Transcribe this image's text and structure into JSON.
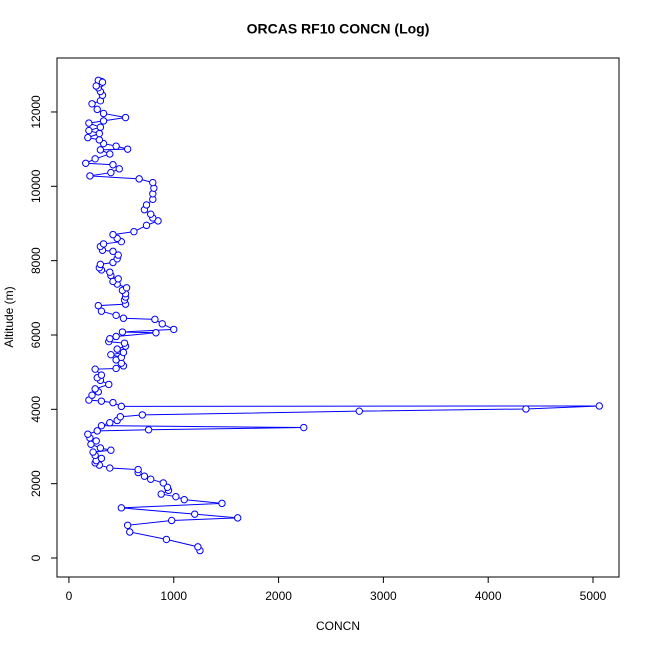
{
  "chart_data": {
    "type": "scatter",
    "title": "ORCAS RF10 CONCN (Log)",
    "x_label": "CONCN",
    "y_label": "Altitude (m)",
    "color": "#0000ff",
    "lines": true,
    "marker": "open-circle",
    "xlim": [
      -114,
      5248
    ],
    "ylim": [
      -511,
      13452
    ],
    "xticks": [
      0,
      1000,
      2000,
      3000,
      4000,
      5000
    ],
    "yticks": [
      0,
      2000,
      4000,
      6000,
      8000,
      10000,
      12000
    ],
    "x": [
      1250,
      1230,
      930,
      580,
      560,
      980,
      1610,
      1200,
      500,
      1460,
      1100,
      1020,
      880,
      950,
      940,
      900,
      780,
      720,
      660,
      660,
      390,
      290,
      250,
      260,
      310,
      250,
      230,
      400,
      300,
      210,
      260,
      200,
      180,
      270,
      760,
      2240,
      310,
      390,
      460,
      490,
      700,
      2770,
      4360,
      5060,
      500,
      420,
      310,
      190,
      220,
      280,
      250,
      380,
      300,
      270,
      310,
      250,
      450,
      520,
      500,
      450,
      500,
      400,
      520,
      460,
      540,
      530,
      380,
      390,
      450,
      830,
      510,
      1000,
      890,
      820,
      520,
      450,
      310,
      280,
      540,
      530,
      540,
      540,
      510,
      550,
      460,
      420,
      470,
      400,
      390,
      310,
      290,
      300,
      420,
      460,
      470,
      420,
      320,
      300,
      330,
      500,
      460,
      420,
      620,
      740,
      850,
      800,
      780,
      720,
      740,
      800,
      800,
      810,
      800,
      670,
      200,
      400,
      480,
      420,
      160,
      250,
      390,
      300,
      560,
      450,
      330,
      290,
      180,
      290,
      190,
      300,
      190,
      330,
      540,
      330,
      270,
      220,
      300,
      320,
      300,
      280,
      300,
      310,
      280,
      320,
      260
    ],
    "values": [
      200,
      300,
      500,
      700,
      880,
      1010,
      1080,
      1180,
      1350,
      1470,
      1570,
      1650,
      1720,
      1820,
      1900,
      2020,
      2120,
      2200,
      2300,
      2380,
      2420,
      2500,
      2560,
      2620,
      2680,
      2760,
      2850,
      2900,
      2960,
      3060,
      3150,
      3230,
      3330,
      3420,
      3450,
      3510,
      3560,
      3640,
      3700,
      3800,
      3850,
      3950,
      4010,
      4090,
      4080,
      4180,
      4220,
      4250,
      4380,
      4470,
      4550,
      4670,
      4780,
      4850,
      4920,
      5080,
      5100,
      5170,
      5240,
      5330,
      5400,
      5470,
      5530,
      5620,
      5700,
      5780,
      5820,
      5900,
      5960,
      6060,
      6080,
      6150,
      6300,
      6420,
      6450,
      6530,
      6640,
      6790,
      6830,
      6940,
      7020,
      7110,
      7200,
      7270,
      7370,
      7440,
      7510,
      7600,
      7690,
      7750,
      7810,
      7900,
      7950,
      8050,
      8150,
      8250,
      8280,
      8380,
      8450,
      8510,
      8600,
      8700,
      8780,
      8950,
      9070,
      9150,
      9250,
      9370,
      9500,
      9650,
      9800,
      9950,
      10100,
      10200,
      10280,
      10370,
      10470,
      10580,
      10620,
      10740,
      10870,
      10980,
      11000,
      11080,
      11150,
      11250,
      11310,
      11420,
      11500,
      11590,
      11700,
      11760,
      11850,
      11960,
      12070,
      12220,
      12300,
      12450,
      12550,
      12650,
      12760,
      12820,
      12850,
      12800,
      12700
    ]
  }
}
